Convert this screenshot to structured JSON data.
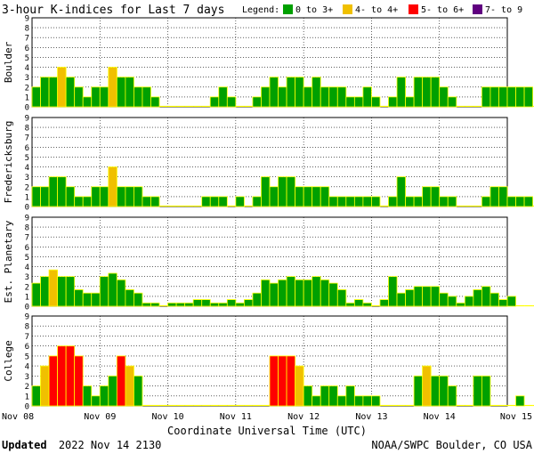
{
  "title": "3-hour K-indices for Last 7 days",
  "legend": {
    "label": "Legend:",
    "entries": [
      {
        "text": "0 to 3+",
        "color": "#00a000"
      },
      {
        "text": "4- to 4+",
        "color": "#f0c000"
      },
      {
        "text": "5- to 6+",
        "color": "#ff0000"
      },
      {
        "text": "7- to 9",
        "color": "#600080"
      }
    ]
  },
  "colors": {
    "quiet": "#00a000",
    "active": "#f0c000",
    "storm": "#ff0000",
    "severe": "#600080",
    "outline": "#ffff00",
    "grid": "#000000"
  },
  "footer": {
    "updated_label": "Updated",
    "updated_value": "2022 Nov 14 2130",
    "source": "NOAA/SWPC Boulder, CO USA"
  },
  "chart_data": {
    "type": "bar",
    "xlabel": "Coordinate Universal Time (UTC)",
    "x_ticks": [
      "Nov 08",
      "Nov 09",
      "Nov 10",
      "Nov 11",
      "Nov 12",
      "Nov 13",
      "Nov 14",
      "Nov 15"
    ],
    "ylim": [
      0,
      9
    ],
    "y_ticks": [
      "0",
      "1",
      "2",
      "3",
      "4",
      "5",
      "6",
      "7",
      "8",
      "9"
    ],
    "slots_per_day": 8,
    "series": [
      {
        "name": "Boulder",
        "values": [
          2,
          3,
          3,
          4,
          3,
          2,
          1,
          2,
          2,
          4,
          3,
          3,
          2,
          2,
          1,
          0,
          0,
          0,
          0,
          0,
          0,
          1,
          2,
          1,
          0,
          0,
          1,
          2,
          3,
          2,
          3,
          3,
          2,
          3,
          2,
          2,
          2,
          1,
          1,
          2,
          1,
          0,
          1,
          3,
          1,
          3,
          3,
          3,
          2,
          1,
          0,
          0,
          0,
          2,
          2,
          2,
          2,
          2,
          2,
          0
        ]
      },
      {
        "name": "Fredericksburg",
        "values": [
          2,
          2,
          3,
          3,
          2,
          1,
          1,
          2,
          2,
          4,
          2,
          2,
          2,
          1,
          1,
          0,
          0,
          0,
          0,
          0,
          1,
          1,
          1,
          0,
          1,
          0,
          1,
          3,
          2,
          3,
          3,
          2,
          2,
          2,
          2,
          1,
          1,
          1,
          1,
          1,
          1,
          0,
          1,
          3,
          1,
          1,
          2,
          2,
          1,
          1,
          0,
          0,
          0,
          1,
          2,
          2,
          1,
          1,
          1,
          0
        ]
      },
      {
        "name": "Est. Planetary",
        "values": [
          2.33,
          3,
          3.67,
          3,
          3,
          1.67,
          1.33,
          1.33,
          3,
          3.33,
          2.67,
          1.67,
          1.33,
          0.33,
          0.33,
          0,
          0.33,
          0.33,
          0.33,
          0.67,
          0.67,
          0.33,
          0.33,
          0.67,
          0.33,
          0.67,
          1.33,
          2.67,
          2.33,
          2.67,
          3,
          2.67,
          2.67,
          3,
          2.67,
          2.33,
          1.67,
          0.33,
          0.67,
          0.33,
          0,
          0.67,
          3,
          1.33,
          1.67,
          2,
          2,
          2,
          1.33,
          1,
          0.33,
          1,
          1.67,
          2,
          1.33,
          0.67,
          1,
          0,
          0,
          0
        ]
      },
      {
        "name": "College",
        "values": [
          2,
          4,
          5,
          6,
          6,
          5,
          2,
          1,
          2,
          3,
          5,
          4,
          3,
          0,
          0,
          0,
          0,
          0,
          0,
          0,
          0,
          0,
          0,
          0,
          0,
          0,
          0,
          0,
          5,
          5,
          5,
          4,
          2,
          1,
          2,
          2,
          1,
          2,
          1,
          1,
          1,
          0,
          0,
          0,
          0,
          3,
          4,
          3,
          3,
          2,
          0,
          0,
          3,
          3,
          0,
          0,
          0,
          1,
          0,
          0
        ]
      }
    ]
  }
}
